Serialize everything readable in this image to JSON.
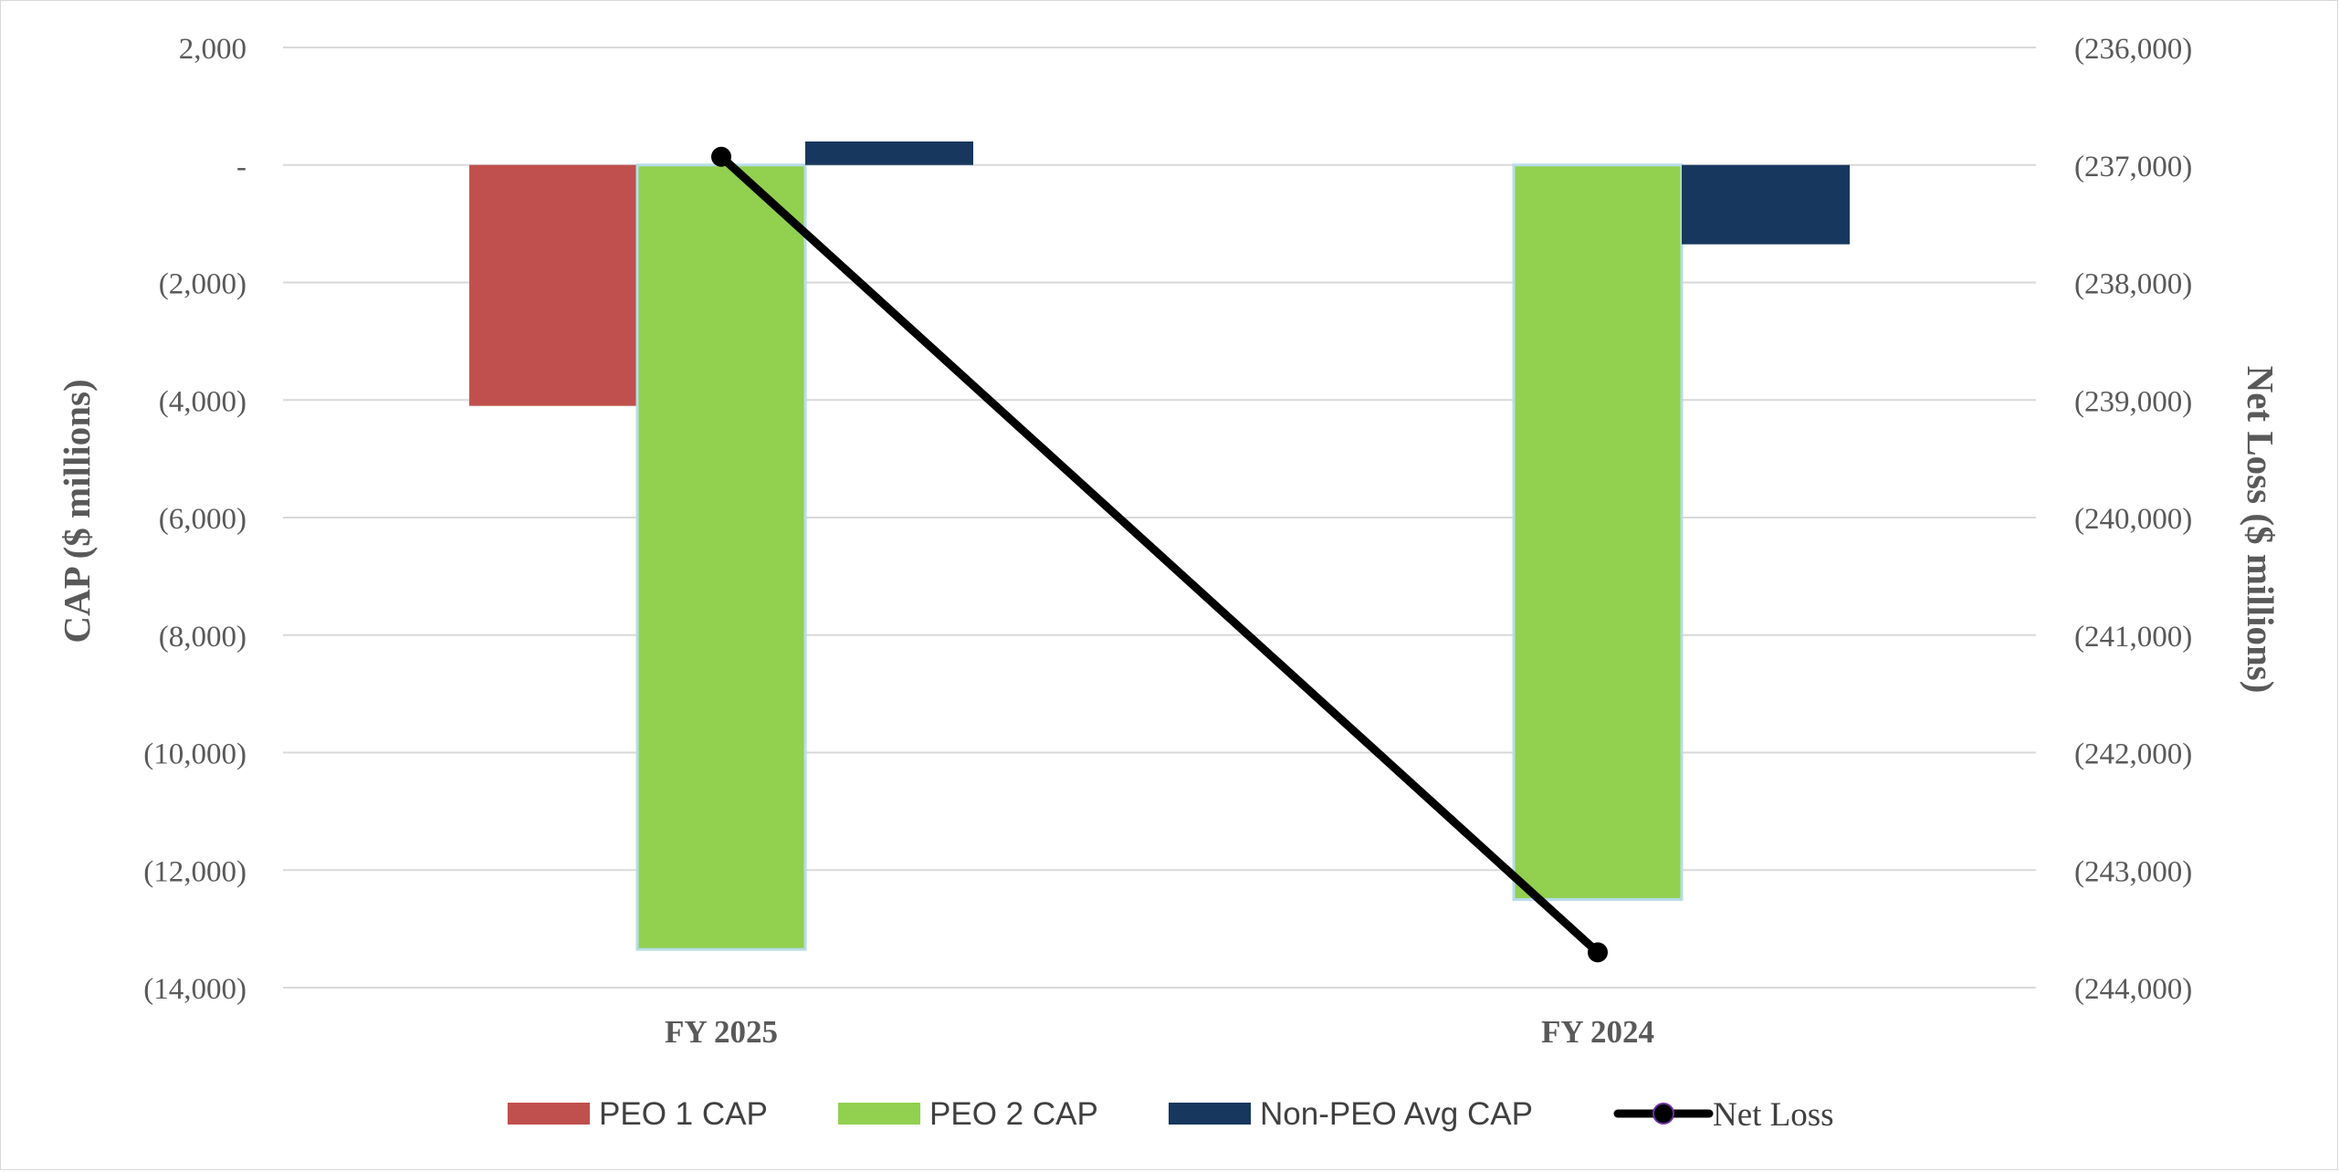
{
  "chart_data": {
    "type": "bar",
    "categories": [
      "FY 2025",
      "FY 2024"
    ],
    "y_left": {
      "label": "CAP ($ millions)",
      "ylim": [
        -14000,
        2000
      ],
      "ticks": [
        2000,
        0,
        -2000,
        -4000,
        -6000,
        -8000,
        -10000,
        -12000,
        -14000
      ],
      "tick_labels": [
        "2,000",
        "-",
        "(2,000)",
        "(4,000)",
        "(6,000)",
        "(8,000)",
        "(10,000)",
        "(12,000)",
        "(14,000)"
      ]
    },
    "y_right": {
      "label": "Net Loss ($ millions)",
      "ylim": [
        -244000,
        -236000
      ],
      "ticks": [
        -236000,
        -237000,
        -238000,
        -239000,
        -240000,
        -241000,
        -242000,
        -243000,
        -244000
      ],
      "tick_labels": [
        "(236,000)",
        "(237,000)",
        "(238,000)",
        "(239,000)",
        "(240,000)",
        "(241,000)",
        "(242,000)",
        "(243,000)",
        "(244,000)"
      ]
    },
    "series": [
      {
        "name": "PEO 1 CAP",
        "kind": "bar",
        "axis": "left",
        "color": "#c0504d",
        "values": [
          -4100,
          null
        ]
      },
      {
        "name": "PEO 2 CAP",
        "kind": "bar",
        "axis": "left",
        "color": "#92d050",
        "values": [
          -13350,
          -12500
        ]
      },
      {
        "name": "Non-PEO Avg CAP",
        "kind": "bar",
        "axis": "left",
        "color": "#17375e",
        "values": [
          400,
          -1350
        ]
      },
      {
        "name": "Net Loss",
        "kind": "line",
        "axis": "right",
        "color": "#000000",
        "values": [
          -236930,
          -243700
        ]
      }
    ],
    "grid": true,
    "legend": "bottom"
  }
}
